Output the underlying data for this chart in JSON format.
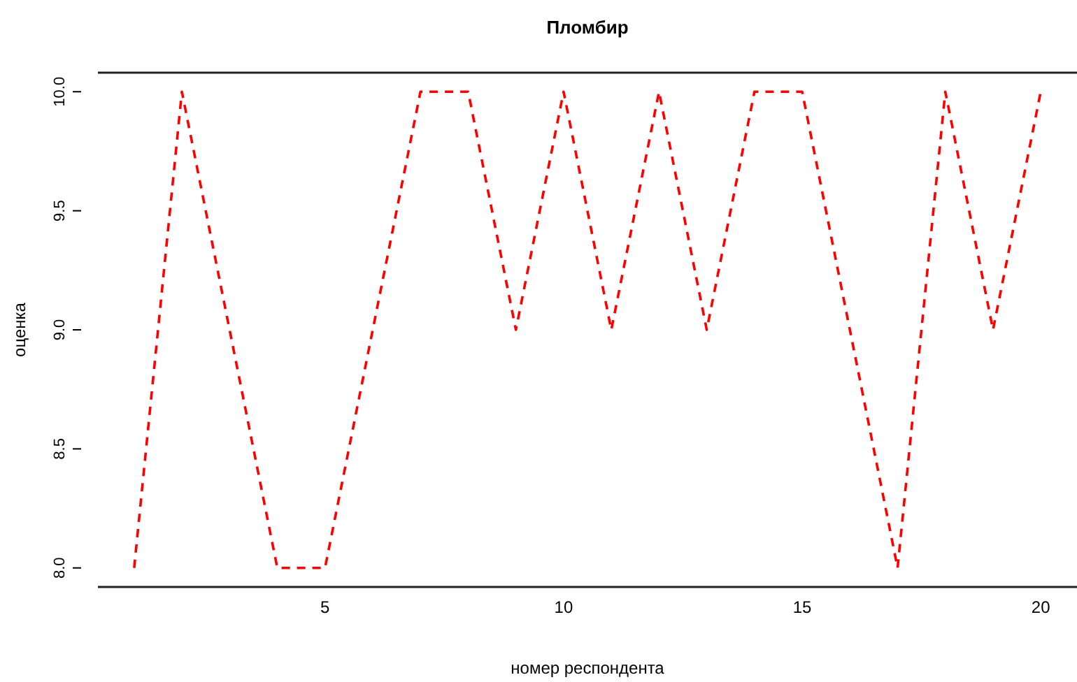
{
  "chart_data": {
    "type": "line",
    "title": "Пломбир",
    "xlabel": "номер респондента",
    "ylabel": "оценка",
    "x": [
      1,
      2,
      3,
      4,
      5,
      6,
      7,
      8,
      9,
      10,
      11,
      12,
      13,
      14,
      15,
      16,
      17,
      18,
      19,
      20
    ],
    "series": [
      {
        "color": "#ff0000",
        "values": [
          8,
          10,
          9,
          8,
          8,
          9,
          10,
          10,
          9,
          10,
          9,
          10,
          9,
          10,
          10,
          9,
          8,
          10,
          9,
          10
        ]
      }
    ],
    "xlim": [
      0.24,
      20.76
    ],
    "xticks": [
      5,
      10,
      15,
      20
    ],
    "ylim": [
      7.92,
      10.08
    ],
    "yticks": [
      {
        "value": 8,
        "label": "8.0"
      },
      {
        "value": 8.5,
        "label": "8.5"
      },
      {
        "value": 9,
        "label": "9.0"
      },
      {
        "value": 9.5,
        "label": "9.5"
      },
      {
        "value": 10,
        "label": "10.0"
      }
    ],
    "grid": false,
    "marker": "none",
    "line_style": "dashed"
  }
}
